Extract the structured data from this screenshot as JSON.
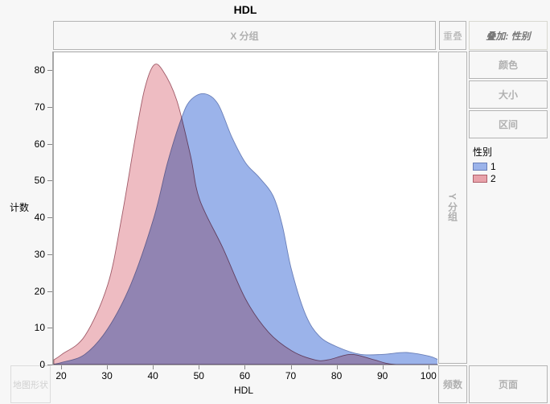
{
  "title": "HDL",
  "zones": {
    "x_group": "X 分组",
    "overlap": "重叠",
    "overlay": "叠加: 性别",
    "color": "颜色",
    "size": "大小",
    "interval": "区间",
    "y_group": "Y 分组",
    "map_shape": "地图形状",
    "freq": "频数",
    "page": "页面"
  },
  "axes": {
    "x_label": "HDL",
    "y_label": "计数",
    "x_ticks": [
      "20",
      "30",
      "40",
      "50",
      "60",
      "70",
      "80",
      "90",
      "100"
    ],
    "y_ticks": [
      "0",
      "10",
      "20",
      "30",
      "40",
      "50",
      "60",
      "70",
      "80"
    ]
  },
  "legend": {
    "title": "性别",
    "items": [
      {
        "label": "1",
        "color": "#9bb3ea",
        "border": "#6a7fb8"
      },
      {
        "label": "2",
        "color": "#e8a2aa",
        "border": "#b0606c"
      }
    ]
  },
  "chart_data": {
    "type": "area",
    "title": "HDL",
    "xlabel": "HDL",
    "ylabel": "计数",
    "xlim": [
      18.25,
      102
    ],
    "ylim": [
      0,
      85
    ],
    "legend_title": "性别",
    "legend_position": "right",
    "grid": false,
    "series": [
      {
        "name": "1",
        "color": "#9bb3ea",
        "x": [
          18.25,
          20,
          25,
          30,
          35,
          40,
          43,
          46,
          48,
          51,
          54,
          57,
          60,
          63,
          66,
          68,
          70,
          73,
          76,
          80,
          85,
          90,
          95,
          100,
          102
        ],
        "y": [
          0.3,
          0.8,
          3,
          10,
          22,
          40,
          55,
          67,
          72,
          73.8,
          71,
          62,
          55,
          51,
          46,
          38,
          26,
          14,
          8,
          5,
          3,
          3,
          3.5,
          2.5,
          1.5
        ]
      },
      {
        "name": "2",
        "color": "#e8a2aa",
        "x": [
          18.25,
          20,
          25,
          30,
          33,
          36,
          38,
          40,
          42,
          45,
          48,
          50,
          55,
          60,
          65,
          70,
          75,
          78,
          83,
          88,
          92,
          100,
          102
        ],
        "y": [
          1.5,
          3,
          8,
          22,
          40,
          62,
          75,
          81.5,
          80,
          72,
          57,
          45,
          32,
          18,
          9,
          4,
          1.5,
          1.5,
          3,
          1.5,
          0.3,
          0,
          0
        ]
      }
    ]
  }
}
